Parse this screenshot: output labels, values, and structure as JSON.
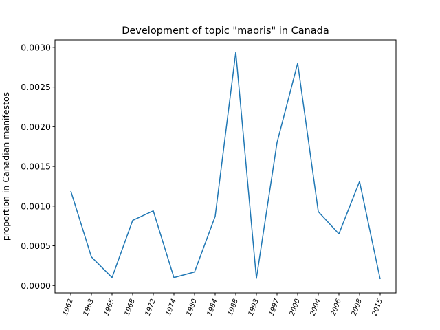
{
  "chart_data": {
    "type": "line",
    "title": "Development of topic \"maoris\" in Canada",
    "xlabel": "",
    "ylabel": "proportion in Canadian manifestos",
    "categories": [
      "1962",
      "1963",
      "1965",
      "1968",
      "1972",
      "1974",
      "1980",
      "1984",
      "1988",
      "1993",
      "1997",
      "2000",
      "2004",
      "2006",
      "2008",
      "2015"
    ],
    "series": [
      {
        "values": [
          0.00119,
          0.00036,
          0.0001,
          0.00082,
          0.00094,
          0.0001,
          0.00017,
          0.00087,
          0.00294,
          9e-05,
          0.0018,
          0.0028,
          0.00093,
          0.00065,
          0.00131,
          8e-05
        ],
        "color": "#1f77b4"
      }
    ],
    "yticks": [
      "0.0000",
      "0.0005",
      "0.0010",
      "0.0015",
      "0.0020",
      "0.0025",
      "0.0030"
    ],
    "ylim": [
      -9.3e-05,
      0.003094
    ],
    "grid": false,
    "legend": false
  }
}
